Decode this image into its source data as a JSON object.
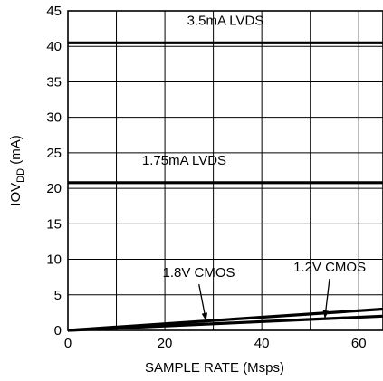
{
  "chart_data": {
    "type": "line",
    "title": "",
    "xlabel": "SAMPLE RATE (Msps)",
    "ylabel": {
      "main": "IOV",
      "sub": "DD",
      "unit": " (mA)"
    },
    "xlim": [
      0,
      65
    ],
    "ylim": [
      0,
      45
    ],
    "xticks": [
      0,
      20,
      40,
      60
    ],
    "yticks": [
      0,
      5,
      10,
      15,
      20,
      25,
      30,
      35,
      40,
      45
    ],
    "grid": true,
    "legend": "none",
    "series": [
      {
        "name": "3.5mA LVDS",
        "x": [
          0,
          65
        ],
        "y": [
          40.5,
          40.5
        ]
      },
      {
        "name": "1.75mA LVDS",
        "x": [
          0,
          65
        ],
        "y": [
          20.8,
          20.8
        ]
      },
      {
        "name": "1.8V CMOS",
        "x": [
          0,
          65
        ],
        "y": [
          0,
          3.0
        ]
      },
      {
        "name": "1.2V CMOS",
        "x": [
          0,
          65
        ],
        "y": [
          0,
          2.0
        ]
      }
    ],
    "annotations": [
      {
        "text": "3.5mA LVDS",
        "x": 32.5,
        "y": 43
      },
      {
        "text": "1.75mA LVDS",
        "x": 24,
        "y": 23.3
      },
      {
        "text": "1.8V CMOS",
        "x": 27,
        "y": 7.5,
        "arrow_to": [
          28.5,
          1.3
        ]
      },
      {
        "text": "1.2V CMOS",
        "x": 54,
        "y": 8.3,
        "arrow_to": [
          53,
          1.65
        ]
      }
    ]
  }
}
